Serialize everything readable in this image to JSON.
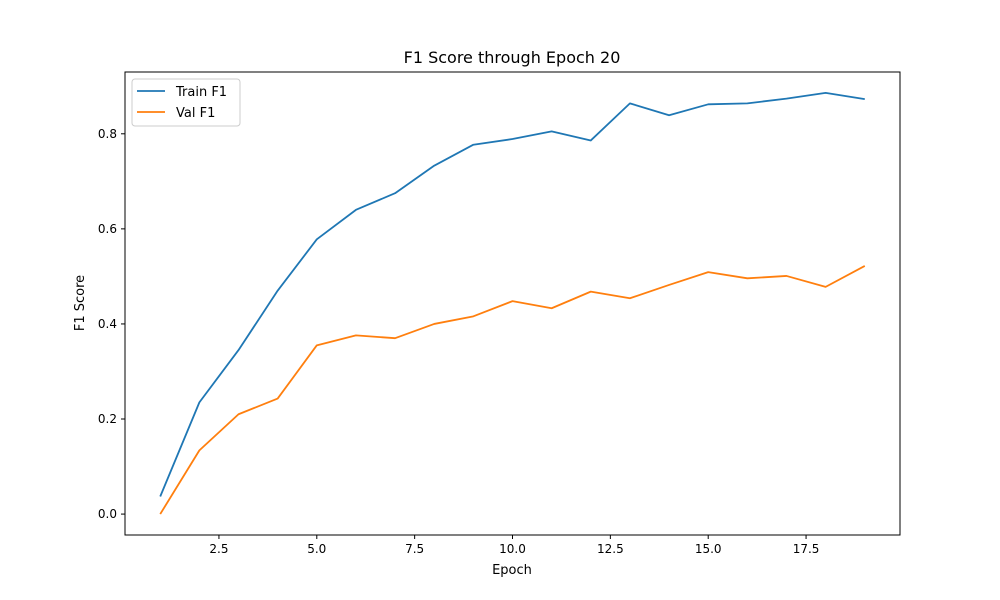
{
  "chart_data": {
    "type": "line",
    "title": "F1 Score through Epoch 20",
    "xlabel": "Epoch",
    "ylabel": "F1 Score",
    "xlim": [
      0.1,
      19.9
    ],
    "ylim": [
      -0.044,
      0.93
    ],
    "xticks": [
      2.5,
      5.0,
      7.5,
      10.0,
      12.5,
      15.0,
      17.5
    ],
    "xtick_labels": [
      "2.5",
      "5.0",
      "7.5",
      "10.0",
      "12.5",
      "15.0",
      "17.5"
    ],
    "yticks": [
      0.0,
      0.2,
      0.4,
      0.6,
      0.8
    ],
    "ytick_labels": [
      "0.0",
      "0.2",
      "0.4",
      "0.6",
      "0.8"
    ],
    "grid": false,
    "legend_position": "top-left",
    "x": [
      1,
      2,
      3,
      4,
      5,
      6,
      7,
      8,
      9,
      10,
      11,
      12,
      13,
      14,
      15,
      16,
      17,
      18,
      19
    ],
    "series": [
      {
        "name": "Train F1",
        "color": "#1f77b4",
        "values": [
          0.037,
          0.235,
          0.345,
          0.47,
          0.578,
          0.64,
          0.675,
          0.733,
          0.777,
          0.789,
          0.805,
          0.786,
          0.864,
          0.839,
          0.862,
          0.864,
          0.874,
          0.886,
          0.873
        ]
      },
      {
        "name": "Val F1",
        "color": "#ff7f0e",
        "values": [
          0.0,
          0.134,
          0.21,
          0.243,
          0.355,
          0.376,
          0.37,
          0.4,
          0.416,
          0.448,
          0.433,
          0.468,
          0.454,
          0.482,
          0.509,
          0.496,
          0.501,
          0.478,
          0.522
        ]
      }
    ]
  }
}
